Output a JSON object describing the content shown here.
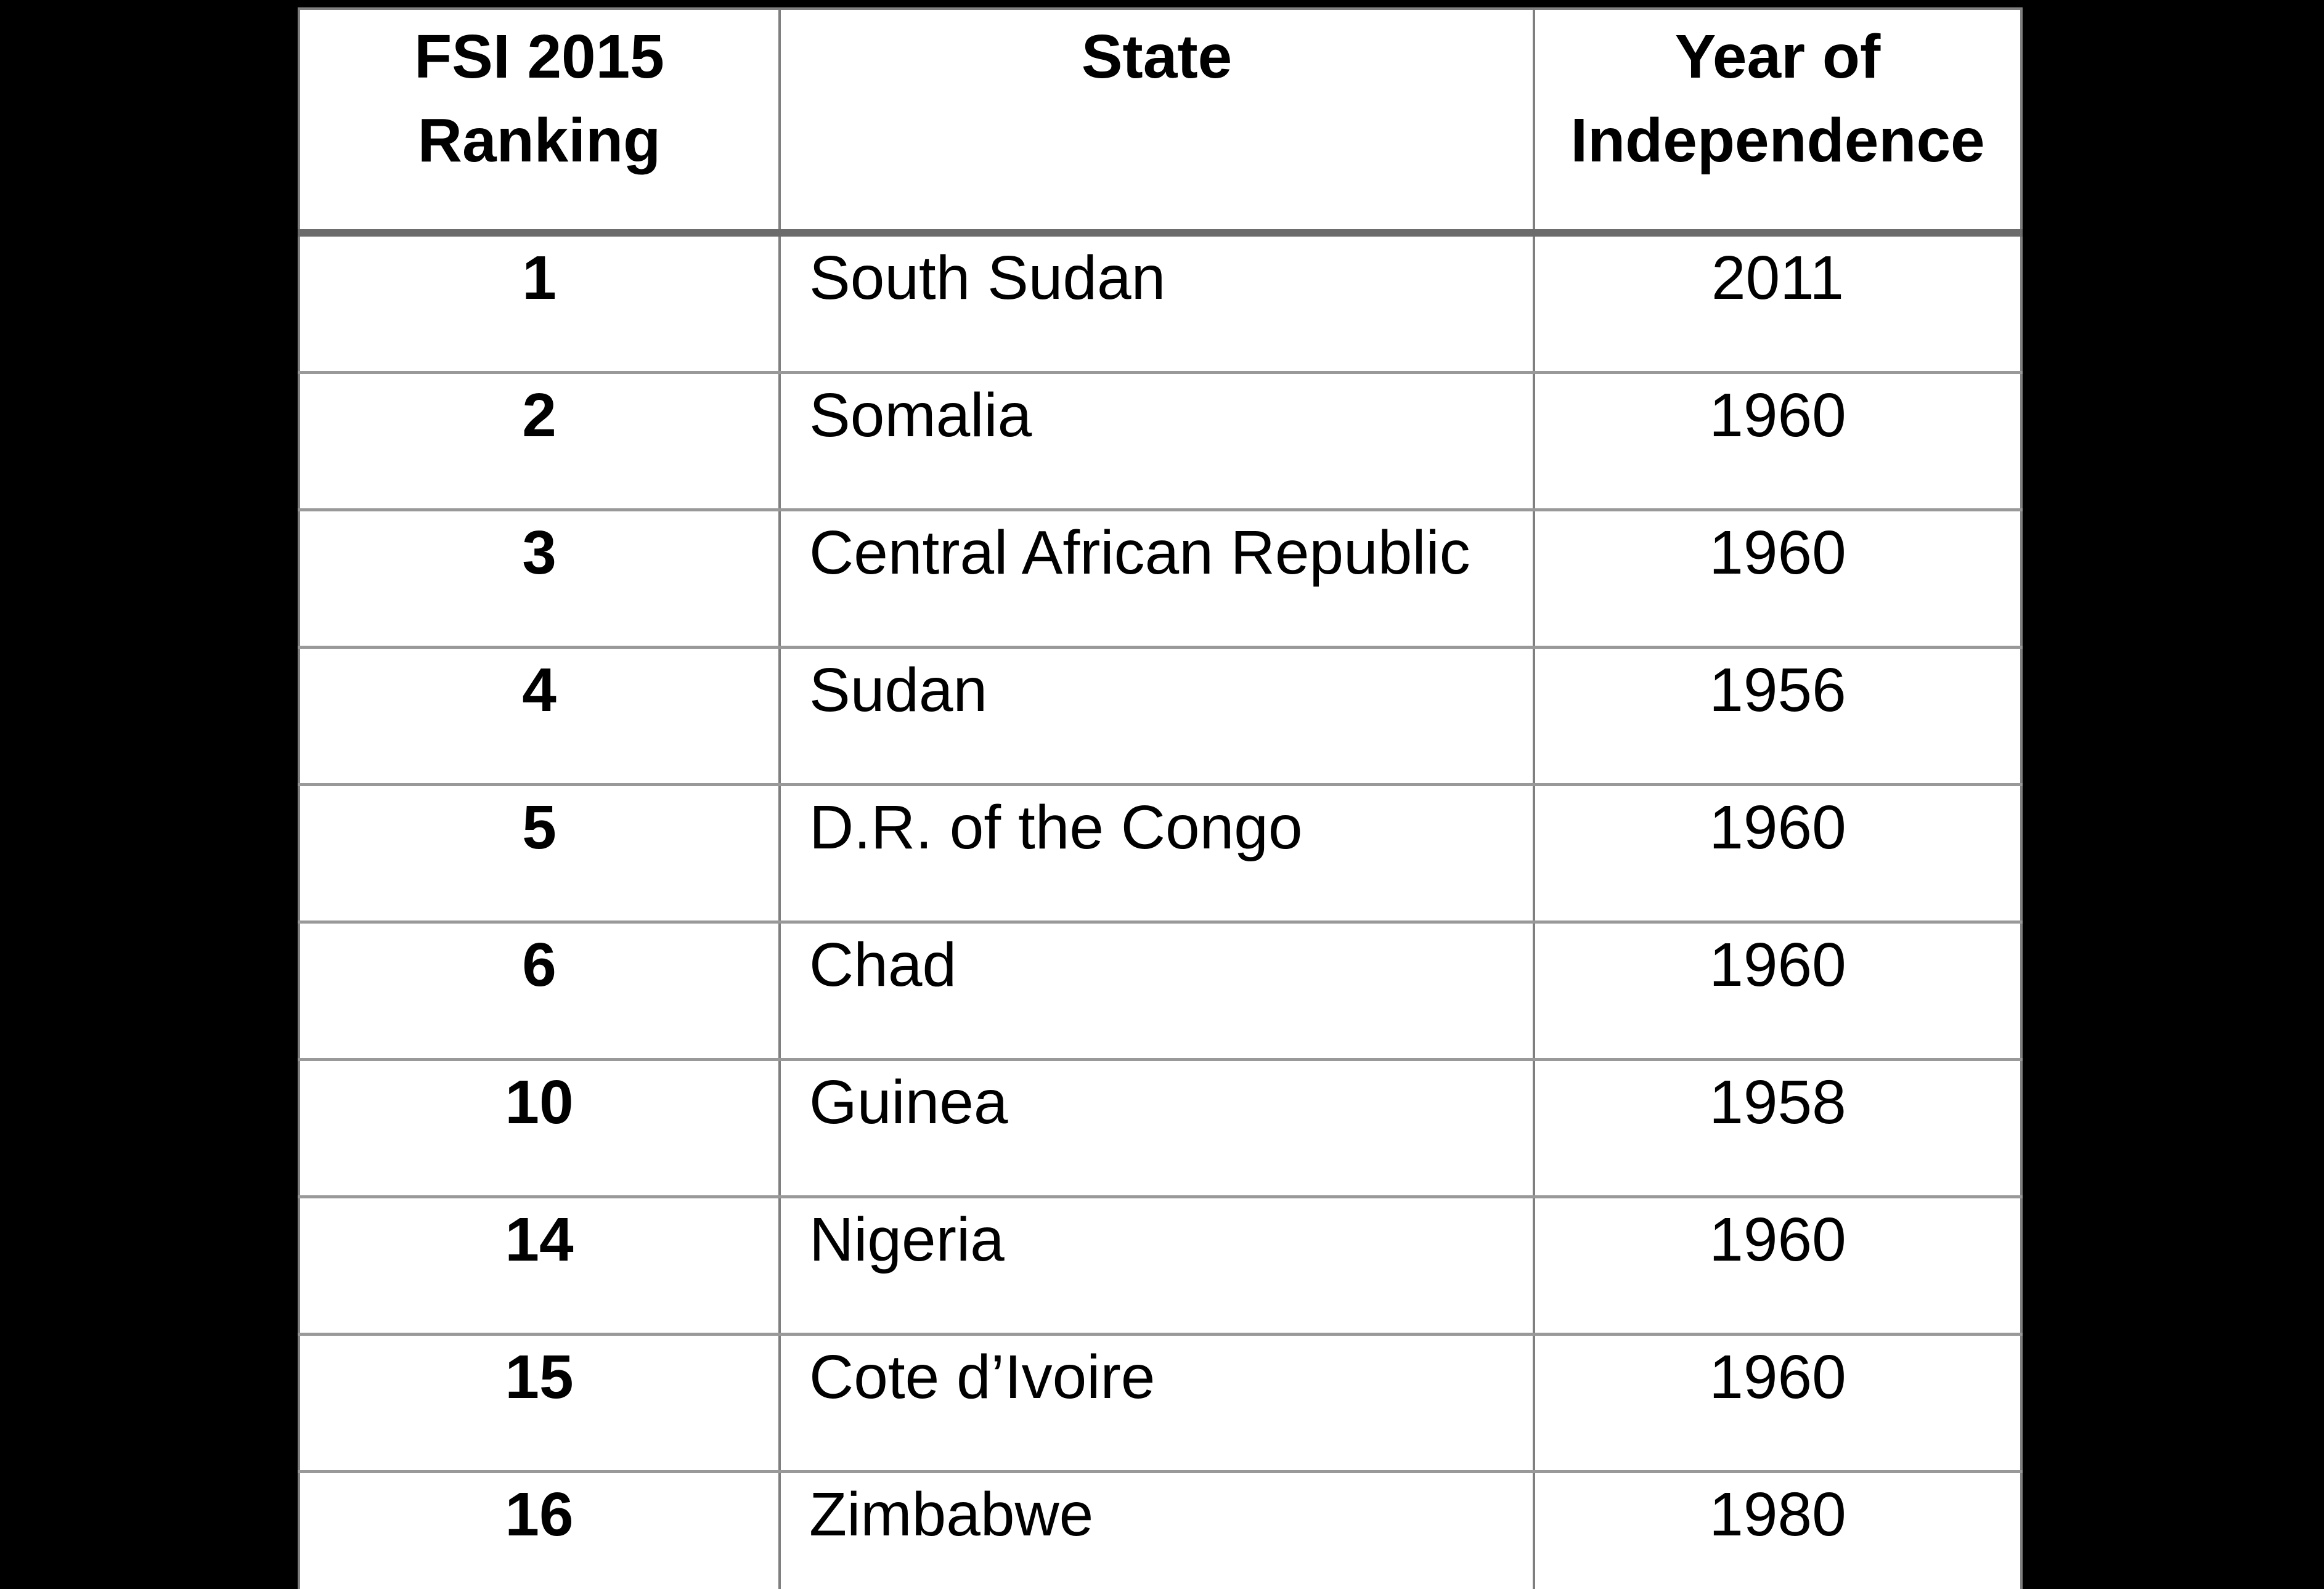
{
  "colors": {
    "page_bg": "#000000",
    "table_bg": "#ffffff",
    "text": "#000000",
    "outer_border": "#808080",
    "row_border": "#999999",
    "header_border": "#6b6b6b",
    "column_border": "#7f7f7f"
  },
  "table": {
    "headers": {
      "ranking": "FSI 2015 Ranking",
      "state": "State",
      "year": "Year of Independence"
    },
    "rows": [
      {
        "rank": "1",
        "state": "South Sudan",
        "year": "2011"
      },
      {
        "rank": "2",
        "state": "Somalia",
        "year": "1960"
      },
      {
        "rank": "3",
        "state": "Central African Republic",
        "year": "1960"
      },
      {
        "rank": "4",
        "state": "Sudan",
        "year": "1956"
      },
      {
        "rank": "5",
        "state": "D.R. of the Congo",
        "year": "1960"
      },
      {
        "rank": "6",
        "state": "Chad",
        "year": "1960"
      },
      {
        "rank": "10",
        "state": "Guinea",
        "year": "1958"
      },
      {
        "rank": "14",
        "state": "Nigeria",
        "year": "1960"
      },
      {
        "rank": "15",
        "state": "Cote d’Ivoire",
        "year": "1960"
      },
      {
        "rank": "16",
        "state": "Zimbabwe",
        "year": "1980"
      }
    ]
  }
}
